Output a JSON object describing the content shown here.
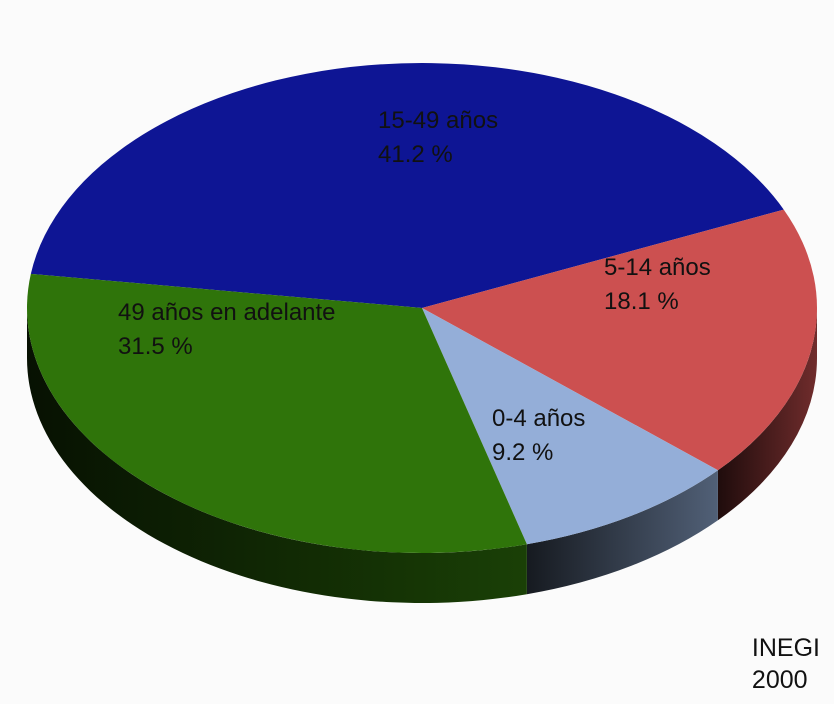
{
  "chart_data": {
    "type": "pie",
    "title": "",
    "slices": [
      {
        "label": "15-49 años",
        "value": 41.2,
        "value_label": "41.2 %",
        "color": "#0e1594"
      },
      {
        "label": "5-14 años",
        "value": 18.1,
        "value_label": "18.1 %",
        "color": "#cc5050"
      },
      {
        "label": "0-4 años",
        "value": 9.2,
        "value_label": "9.2 %",
        "color": "#94aed8"
      },
      {
        "label": "49 años en adelante",
        "value": 31.5,
        "value_label": "31.5 %",
        "color": "#2f740a"
      }
    ],
    "style": "3d-tilted",
    "legend": "none"
  },
  "source": {
    "line1": "INEGI",
    "line2": "2000"
  }
}
